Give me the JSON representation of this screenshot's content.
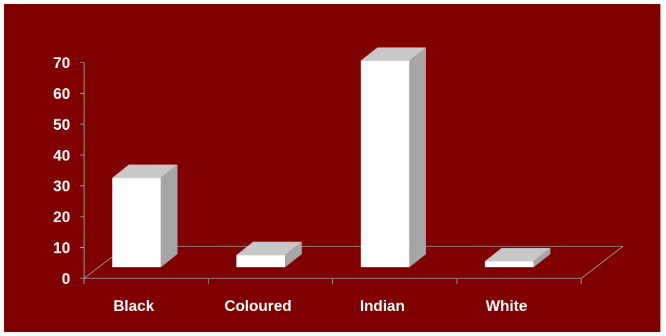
{
  "chart_data": {
    "type": "bar",
    "style": "3d-column",
    "title": "",
    "xlabel": "",
    "ylabel": "",
    "categories": [
      "Black",
      "Coloured",
      "Indian",
      "White"
    ],
    "values": [
      29,
      4,
      67,
      2
    ],
    "ylim": [
      0,
      70
    ],
    "yticks": [
      0,
      10,
      20,
      30,
      40,
      50,
      60,
      70
    ],
    "grid": false,
    "legend": "none",
    "colors": {
      "background": "#800000",
      "bar_front": "#ffffff",
      "bar_side": "#a6a6a6",
      "bar_top": "#c8c8c8",
      "axis": "#a0a0a0",
      "text": "#ffffff"
    }
  }
}
